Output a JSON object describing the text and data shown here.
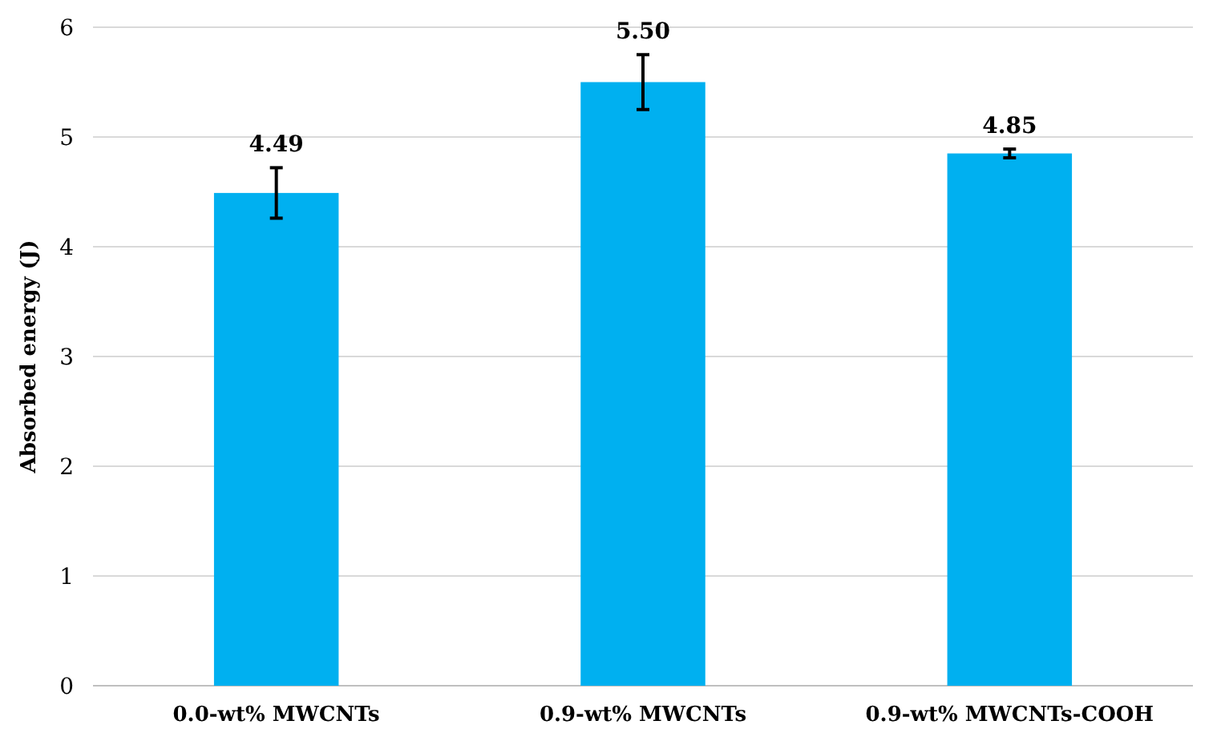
{
  "chart_data": {
    "type": "bar",
    "ylabel": "Absorbed energy (J)",
    "categories": [
      "0.0-wt% MWCNTs",
      "0.9-wt% MWCNTs",
      "0.9-wt% MWCNTs-COOH"
    ],
    "values": [
      4.49,
      5.5,
      4.85
    ],
    "color": "#00b0f0",
    "errors": [
      0.23,
      0.25,
      0.04
    ],
    "ylim": [
      0,
      6
    ],
    "yticks": [
      0,
      1,
      2,
      3,
      4,
      5,
      6
    ],
    "grid": "y",
    "value_labels": [
      "4.49",
      "5.50",
      "4.85"
    ]
  }
}
